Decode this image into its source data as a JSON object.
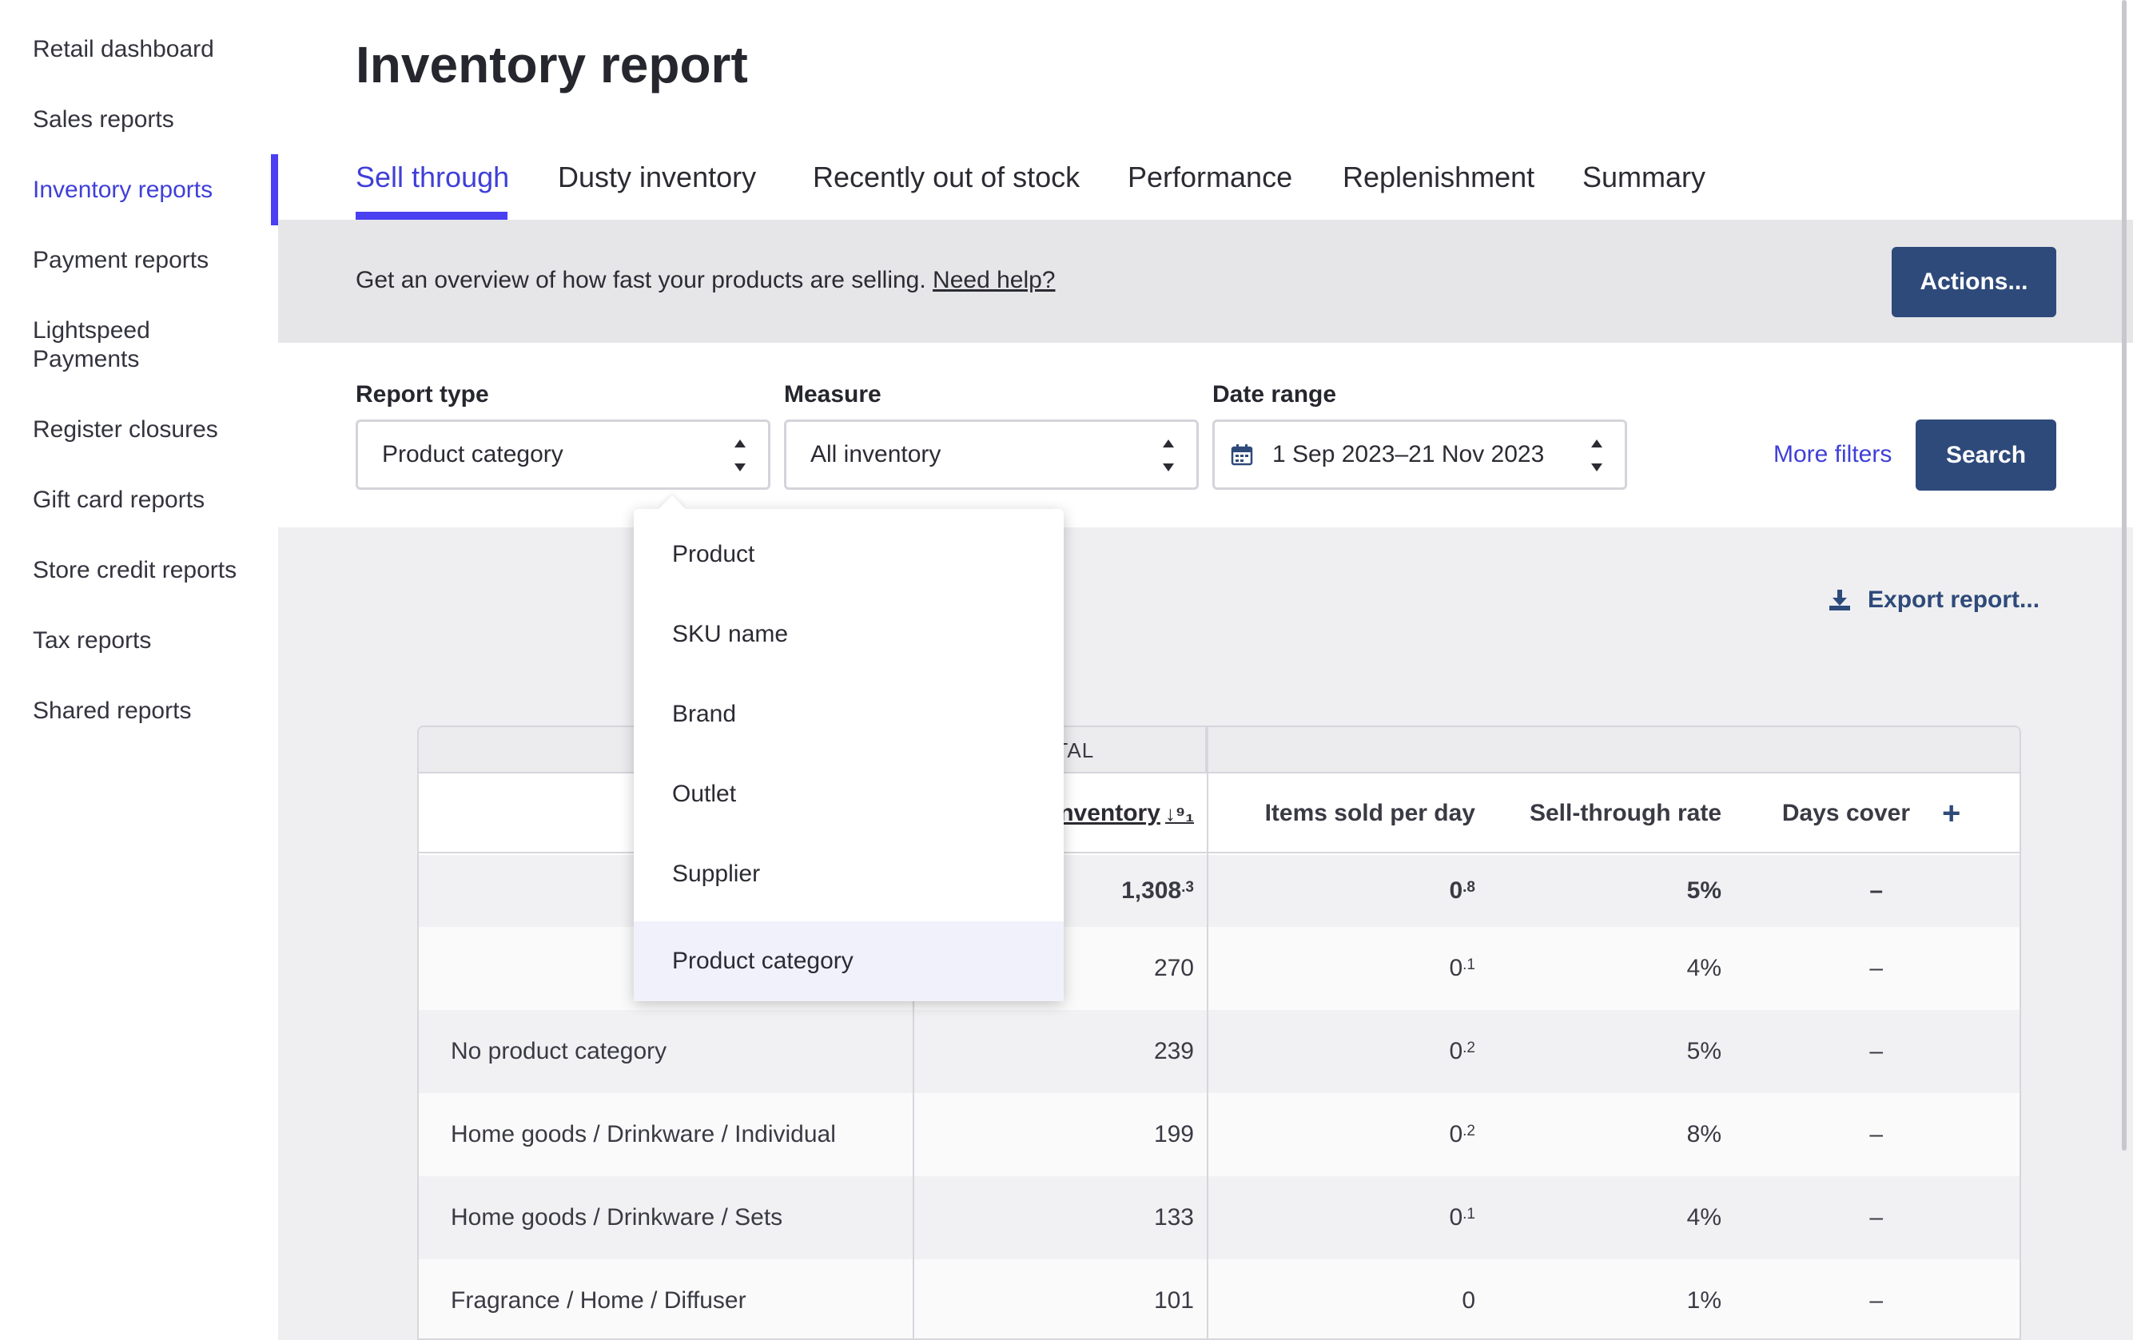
{
  "sidebar": {
    "items": [
      {
        "label": "Retail dashboard"
      },
      {
        "label": "Sales reports"
      },
      {
        "label": "Inventory reports",
        "active": true
      },
      {
        "label": "Payment reports"
      },
      {
        "label": "Lightspeed\nPayments"
      },
      {
        "label": "Register closures"
      },
      {
        "label": "Gift card reports"
      },
      {
        "label": "Store credit reports"
      },
      {
        "label": "Tax reports"
      },
      {
        "label": "Shared reports"
      }
    ]
  },
  "page": {
    "title": "Inventory report",
    "tabs": [
      {
        "label": "Sell through",
        "active": true
      },
      {
        "label": "Dusty inventory"
      },
      {
        "label": "Recently out of stock"
      },
      {
        "label": "Performance"
      },
      {
        "label": "Replenishment"
      },
      {
        "label": "Summary"
      }
    ],
    "info_text": "Get an overview of how fast your products are selling.",
    "help_link": "Need help?",
    "actions_label": "Actions..."
  },
  "filters": {
    "report_type_label": "Report type",
    "report_type_value": "Product category",
    "measure_label": "Measure",
    "measure_value": "All inventory",
    "date_range_label": "Date range",
    "date_range_value": "1 Sep 2023–21 Nov 2023",
    "more_filters_label": "More filters",
    "search_label": "Search"
  },
  "export_label": "Export report...",
  "dropdown": {
    "options": [
      "Product",
      "SKU name",
      "Brand",
      "Outlet",
      "Supplier",
      "Product category"
    ],
    "selected": "Product category"
  },
  "table": {
    "group_header": "TOTAL",
    "columns": [
      "Closing inventory",
      "Items sold per day",
      "Sell-through rate",
      "Days cover"
    ],
    "add_column_label": "+",
    "total_row": {
      "closing_main": "1,308",
      "closing_dec": ".3",
      "sold_main": "0",
      "sold_dec": ".8",
      "rate": "5%",
      "cover": "–"
    },
    "rows": [
      {
        "name": "",
        "closing": "270",
        "sold_main": "0",
        "sold_dec": ".1",
        "rate": "4%",
        "cover": "–"
      },
      {
        "name": "No product category",
        "closing": "239",
        "sold_main": "0",
        "sold_dec": ".2",
        "rate": "5%",
        "cover": "–"
      },
      {
        "name": "Home goods / Drinkware / Individual",
        "closing": "199",
        "sold_main": "0",
        "sold_dec": ".2",
        "rate": "8%",
        "cover": "–"
      },
      {
        "name": "Home goods / Drinkware / Sets",
        "closing": "133",
        "sold_main": "0",
        "sold_dec": ".1",
        "rate": "4%",
        "cover": "–"
      },
      {
        "name": "Fragrance / Home / Diffuser",
        "closing": "101",
        "sold_main": "0",
        "sold_dec": "",
        "rate": "1%",
        "cover": "–"
      }
    ]
  },
  "colors": {
    "accent": "#4b3ff2",
    "primary_button": "#2e4a7a",
    "link": "#3f3fd8"
  }
}
